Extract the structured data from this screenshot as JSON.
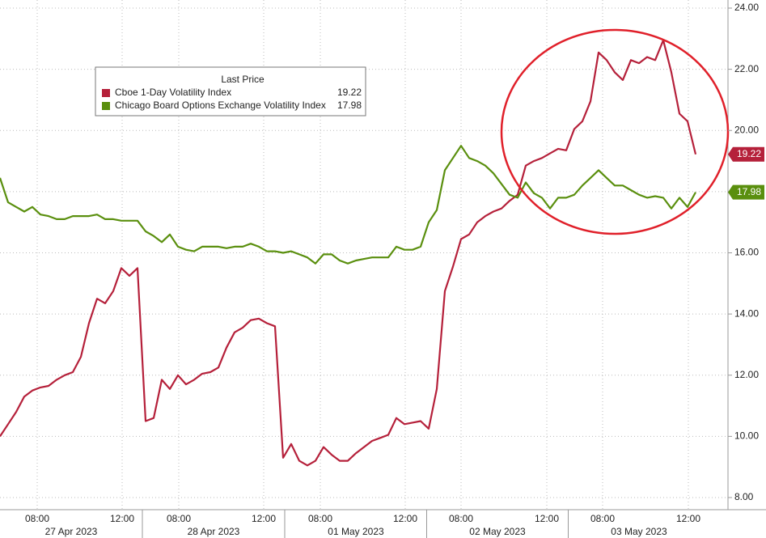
{
  "chart_data": {
    "type": "line",
    "legend_title": "Last Price",
    "annotation": "circle",
    "x": [
      0,
      1,
      2,
      3,
      4,
      5,
      6,
      7,
      8,
      9,
      10,
      11,
      12,
      13,
      14,
      15,
      16,
      17,
      18,
      19,
      20,
      21,
      22,
      23,
      24,
      25,
      26,
      27,
      28,
      29,
      30,
      31,
      32,
      33,
      34,
      35,
      36,
      37,
      38,
      39,
      40,
      41,
      42,
      43,
      44,
      45,
      46,
      47,
      48,
      49,
      50,
      51,
      52,
      53,
      54,
      55,
      56,
      57,
      58,
      59,
      60,
      61,
      62,
      63,
      64,
      65,
      66,
      67,
      68,
      69,
      70,
      71,
      72,
      73,
      74,
      75,
      76,
      77,
      78,
      79,
      80,
      81,
      82,
      83,
      84,
      85,
      86
    ],
    "series": [
      {
        "name": "Cboe 1-Day Volatility Index",
        "color": "#b5203a",
        "values": [
          10.0,
          10.4,
          10.8,
          11.3,
          11.5,
          11.6,
          11.65,
          11.85,
          12.0,
          12.1,
          12.6,
          13.7,
          14.5,
          14.35,
          14.75,
          15.5,
          15.25,
          15.5,
          10.5,
          10.6,
          11.85,
          11.55,
          12.0,
          11.7,
          11.85,
          12.05,
          12.1,
          12.25,
          12.9,
          13.4,
          13.55,
          13.8,
          13.85,
          13.7,
          13.6,
          9.3,
          9.75,
          9.2,
          9.05,
          9.2,
          9.65,
          9.4,
          9.2,
          9.2,
          9.45,
          9.65,
          9.85,
          9.95,
          10.05,
          10.6,
          10.4,
          10.45,
          10.5,
          10.25,
          11.55,
          14.75,
          15.55,
          16.45,
          16.6,
          17.0,
          17.2,
          17.35,
          17.45,
          17.7,
          17.9,
          18.85,
          19.0,
          19.1,
          19.25,
          19.4,
          19.35,
          20.05,
          20.3,
          20.95,
          22.55,
          22.3,
          21.9,
          21.65,
          22.3,
          22.2,
          22.4,
          22.3,
          22.95,
          21.9,
          20.55,
          20.3,
          19.22
        ]
      },
      {
        "name": "Chicago Board Options Exchange Volatility Index",
        "color": "#5a8f0e",
        "values": [
          18.45,
          17.65,
          17.5,
          17.35,
          17.5,
          17.25,
          17.2,
          17.1,
          17.1,
          17.2,
          17.2,
          17.2,
          17.25,
          17.1,
          17.1,
          17.05,
          17.05,
          17.05,
          16.7,
          16.55,
          16.35,
          16.6,
          16.2,
          16.1,
          16.05,
          16.2,
          16.2,
          16.2,
          16.15,
          16.2,
          16.2,
          16.3,
          16.2,
          16.05,
          16.05,
          16.0,
          16.05,
          15.95,
          15.85,
          15.65,
          15.95,
          15.95,
          15.75,
          15.65,
          15.75,
          15.8,
          15.85,
          15.85,
          15.85,
          16.2,
          16.1,
          16.1,
          16.2,
          17.0,
          17.4,
          18.7,
          19.1,
          19.5,
          19.1,
          19.0,
          18.85,
          18.6,
          18.25,
          17.9,
          17.8,
          18.3,
          17.95,
          17.8,
          17.45,
          17.8,
          17.8,
          17.9,
          18.2,
          18.45,
          18.7,
          18.45,
          18.2,
          18.2,
          18.05,
          17.9,
          17.8,
          17.85,
          17.8,
          17.45,
          17.8,
          17.5,
          17.98
        ]
      }
    ],
    "xlim": [
      0,
      90
    ],
    "xticks": [
      {
        "value": 4.6,
        "label": "08:00"
      },
      {
        "value": 15.1,
        "label": "12:00"
      },
      {
        "value": 22.1,
        "label": "08:00"
      },
      {
        "value": 32.6,
        "label": "12:00"
      },
      {
        "value": 39.6,
        "label": "08:00"
      },
      {
        "value": 50.1,
        "label": "12:00"
      },
      {
        "value": 57.0,
        "label": "08:00"
      },
      {
        "value": 67.6,
        "label": "12:00"
      },
      {
        "value": 74.5,
        "label": "08:00"
      },
      {
        "value": 85.1,
        "label": "12:00"
      }
    ],
    "day_ticks": [
      {
        "value": 8.8,
        "label": "27 Apr 2023"
      },
      {
        "value": 26.4,
        "label": "28 Apr 2023"
      },
      {
        "value": 44.0,
        "label": "01 May 2023"
      },
      {
        "value": 61.5,
        "label": "02 May 2023"
      },
      {
        "value": 79.0,
        "label": "03 May 2023"
      }
    ],
    "ylim": [
      8,
      24
    ],
    "yticks": [
      {
        "value": 8,
        "label": "8.00"
      },
      {
        "value": 10,
        "label": "10.00"
      },
      {
        "value": 12,
        "label": "12.00"
      },
      {
        "value": 14,
        "label": "14.00"
      },
      {
        "value": 16,
        "label": "16.00"
      },
      {
        "value": 18,
        "label": "18.00"
      },
      {
        "value": 20,
        "label": "20.00"
      },
      {
        "value": 22,
        "label": "22.00"
      },
      {
        "value": 24,
        "label": "24.00"
      }
    ],
    "grid": true
  }
}
